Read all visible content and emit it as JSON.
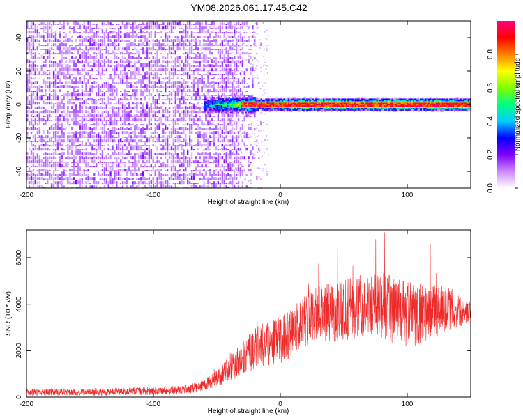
{
  "title": "YM08.2026.061.17.45.C42",
  "chart_data": [
    {
      "type": "heatmap",
      "xlabel": "Height of straight line (km)",
      "ylabel": "Frequency (Hz)",
      "xlim": [
        -200,
        150
      ],
      "ylim": [
        -50,
        50
      ],
      "xticks": [
        -200,
        -100,
        0,
        100
      ],
      "yticks": [
        -40,
        -20,
        0,
        20,
        40
      ],
      "noise_region_x": [
        -200,
        -35
      ],
      "signal_band": {
        "x_start": -60,
        "x_end": 150,
        "center_hz": 0,
        "halfwidth_hz": 3
      },
      "colorbar": {
        "label": "Normalized spectral amplitude",
        "range": [
          0.0,
          1.0
        ],
        "ticks": [
          0.0,
          0.2,
          0.4,
          0.6,
          0.8
        ],
        "tick_labels": [
          "0.0",
          "0.2",
          "0.4",
          "0.6",
          "0.8"
        ],
        "colormap": [
          "#ffffff",
          "#cc88ff",
          "#8000ff",
          "#0000ff",
          "#00ccff",
          "#00ff80",
          "#80ff00",
          "#ffff00",
          "#ff8000",
          "#ff0000",
          "#ff0080"
        ]
      }
    },
    {
      "type": "line",
      "xlabel": "Height of straight line (km)",
      "ylabel": "SNR (10 * v/v)",
      "xlim": [
        -200,
        150
      ],
      "ylim": [
        0,
        7200
      ],
      "xticks": [
        -200,
        -100,
        0,
        100
      ],
      "yticks": [
        0,
        2000,
        4000,
        6000
      ],
      "series": [
        {
          "name": "SNR",
          "color": "#ee2a2a",
          "x": [
            -200,
            -180,
            -160,
            -140,
            -120,
            -100,
            -80,
            -65,
            -55,
            -45,
            -35,
            -25,
            -15,
            -5,
            5,
            15,
            25,
            35,
            45,
            55,
            65,
            75,
            80,
            85,
            95,
            105,
            115,
            125,
            135,
            145,
            150
          ],
          "mean": [
            200,
            210,
            205,
            220,
            240,
            260,
            300,
            420,
            650,
            1000,
            1450,
            1900,
            2250,
            2350,
            2600,
            3100,
            3500,
            3600,
            3750,
            3800,
            3900,
            4000,
            3950,
            3850,
            3600,
            3500,
            3650,
            3700,
            3800,
            3600,
            3750
          ],
          "spread": [
            150,
            150,
            150,
            150,
            160,
            170,
            180,
            220,
            300,
            450,
            650,
            800,
            950,
            1000,
            1050,
            1100,
            1150,
            1250,
            1350,
            1350,
            1300,
            1400,
            1500,
            1450,
            1500,
            1400,
            1250,
            1100,
            900,
            500,
            400
          ],
          "peaks": [
            [
              82,
              7100
            ],
            [
              75,
              6800
            ],
            [
              118,
              6600
            ],
            [
              45,
              6450
            ],
            [
              30,
              5750
            ],
            [
              57,
              5650
            ]
          ]
        }
      ]
    }
  ]
}
